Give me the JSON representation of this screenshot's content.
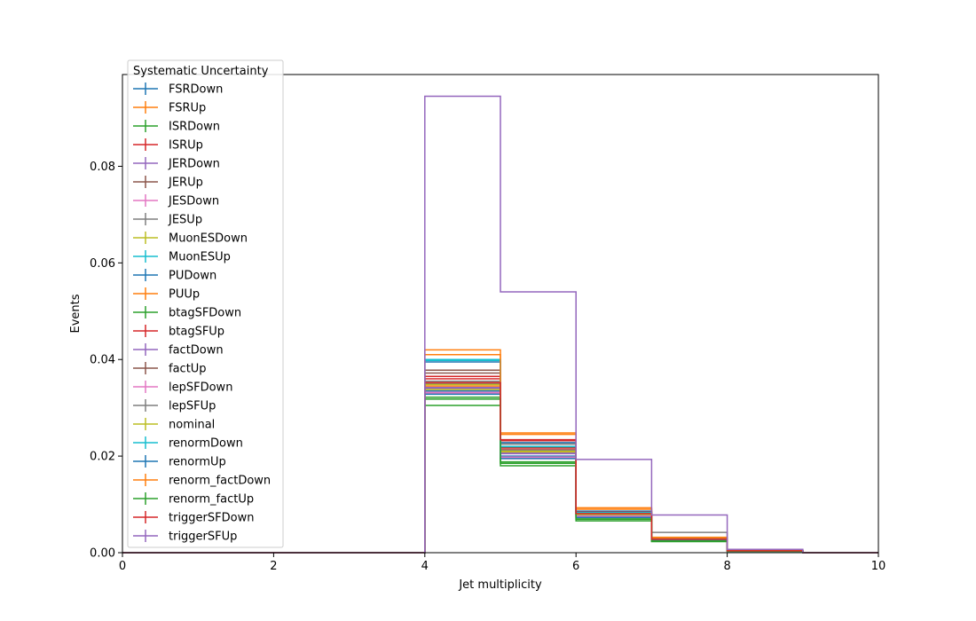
{
  "chart_data": {
    "type": "line",
    "xlabel": "Jet multiplicity",
    "ylabel": "Events",
    "xlim": [
      0,
      10
    ],
    "ylim": [
      0,
      0.099
    ],
    "xticks": [
      0,
      2,
      4,
      6,
      8,
      10
    ],
    "yticks": [
      0.0,
      0.02,
      0.04,
      0.06,
      0.08
    ],
    "ytick_labels": [
      "0.00",
      "0.02",
      "0.04",
      "0.06",
      "0.08"
    ],
    "grid": false,
    "legend_title": "Systematic Uncertainty",
    "legend_placement": "upper-left",
    "bin_edges": [
      0,
      1,
      2,
      3,
      4,
      5,
      6,
      7,
      8,
      9,
      10
    ],
    "series": [
      {
        "name": "FSRDown",
        "color": "#1f77b4",
        "values": [
          0,
          0,
          0,
          0,
          0.0335,
          0.02,
          0.0075,
          0.0026,
          0.0004,
          0
        ]
      },
      {
        "name": "FSRUp",
        "color": "#ff7f0e",
        "values": [
          0,
          0,
          0,
          0,
          0.042,
          0.0248,
          0.0093,
          0.0032,
          0.0005,
          0
        ]
      },
      {
        "name": "ISRDown",
        "color": "#2ca02c",
        "values": [
          0,
          0,
          0,
          0,
          0.0305,
          0.018,
          0.0066,
          0.0023,
          0.0003,
          0
        ]
      },
      {
        "name": "ISRUp",
        "color": "#d62728",
        "values": [
          0,
          0,
          0,
          0,
          0.036,
          0.0215,
          0.008,
          0.0028,
          0.0004,
          0
        ]
      },
      {
        "name": "JERDown",
        "color": "#9467bd",
        "values": [
          0,
          0,
          0,
          0,
          0.034,
          0.0205,
          0.0078,
          0.0027,
          0.0004,
          0
        ]
      },
      {
        "name": "JERUp",
        "color": "#8c564b",
        "values": [
          0,
          0,
          0,
          0,
          0.0378,
          0.0225,
          0.0083,
          0.0029,
          0.0004,
          0
        ]
      },
      {
        "name": "JESDown",
        "color": "#e377c2",
        "values": [
          0,
          0,
          0,
          0,
          0.033,
          0.0195,
          0.0074,
          0.0026,
          0.0004,
          0
        ]
      },
      {
        "name": "JESUp",
        "color": "#7f7f7f",
        "values": [
          0,
          0,
          0,
          0,
          0.0355,
          0.0225,
          0.0085,
          0.0042,
          0.0005,
          0
        ]
      },
      {
        "name": "MuonESDown",
        "color": "#bcbd22",
        "values": [
          0,
          0,
          0,
          0,
          0.0338,
          0.0208,
          0.008,
          0.0027,
          0.0004,
          0
        ]
      },
      {
        "name": "MuonESUp",
        "color": "#17becf",
        "values": [
          0,
          0,
          0,
          0,
          0.0398,
          0.0212,
          0.0082,
          0.0028,
          0.0004,
          0
        ]
      },
      {
        "name": "PUDown",
        "color": "#1f77b4",
        "values": [
          0,
          0,
          0,
          0,
          0.0395,
          0.0228,
          0.0086,
          0.003,
          0.0005,
          0
        ]
      },
      {
        "name": "PUUp",
        "color": "#ff7f0e",
        "values": [
          0,
          0,
          0,
          0,
          0.0345,
          0.021,
          0.0079,
          0.0027,
          0.0004,
          0
        ]
      },
      {
        "name": "btagSFDown",
        "color": "#2ca02c",
        "values": [
          0,
          0,
          0,
          0,
          0.0322,
          0.0188,
          0.007,
          0.0024,
          0.0003,
          0
        ]
      },
      {
        "name": "btagSFUp",
        "color": "#d62728",
        "values": [
          0,
          0,
          0,
          0,
          0.0365,
          0.0232,
          0.0084,
          0.0029,
          0.0004,
          0
        ]
      },
      {
        "name": "factDown",
        "color": "#9467bd",
        "values": [
          0,
          0,
          0,
          0,
          0.0342,
          0.0206,
          0.0078,
          0.0027,
          0.0004,
          0
        ]
      },
      {
        "name": "factUp",
        "color": "#8c564b",
        "values": [
          0,
          0,
          0,
          0,
          0.0372,
          0.0218,
          0.0081,
          0.0028,
          0.0004,
          0
        ]
      },
      {
        "name": "lepSFDown",
        "color": "#e377c2",
        "values": [
          0,
          0,
          0,
          0,
          0.0332,
          0.0198,
          0.0075,
          0.0026,
          0.0004,
          0
        ]
      },
      {
        "name": "lepSFUp",
        "color": "#7f7f7f",
        "values": [
          0,
          0,
          0,
          0,
          0.035,
          0.0212,
          0.008,
          0.0028,
          0.0004,
          0
        ]
      },
      {
        "name": "nominal",
        "color": "#bcbd22",
        "values": [
          0,
          0,
          0,
          0,
          0.0348,
          0.021,
          0.0079,
          0.0027,
          0.0004,
          0
        ]
      },
      {
        "name": "renormDown",
        "color": "#17becf",
        "values": [
          0,
          0,
          0,
          0,
          0.04,
          0.022,
          0.0083,
          0.0029,
          0.0004,
          0
        ]
      },
      {
        "name": "renormUp",
        "color": "#1f77b4",
        "values": [
          0,
          0,
          0,
          0,
          0.0328,
          0.0195,
          0.0073,
          0.0025,
          0.0003,
          0
        ]
      },
      {
        "name": "renorm_factDown",
        "color": "#ff7f0e",
        "values": [
          0,
          0,
          0,
          0,
          0.041,
          0.0245,
          0.009,
          0.0031,
          0.0005,
          0
        ]
      },
      {
        "name": "renorm_factUp",
        "color": "#2ca02c",
        "values": [
          0,
          0,
          0,
          0,
          0.0318,
          0.0185,
          0.0069,
          0.0024,
          0.0003,
          0
        ]
      },
      {
        "name": "triggerSFDown",
        "color": "#d62728",
        "values": [
          0,
          0,
          0,
          0,
          0.0352,
          0.0234,
          0.0081,
          0.0028,
          0.0004,
          0
        ]
      },
      {
        "name": "triggerSFUp",
        "color": "#9467bd",
        "values": [
          0,
          0,
          0,
          0,
          0.0945,
          0.054,
          0.0193,
          0.0078,
          0.0007,
          0
        ]
      }
    ]
  }
}
